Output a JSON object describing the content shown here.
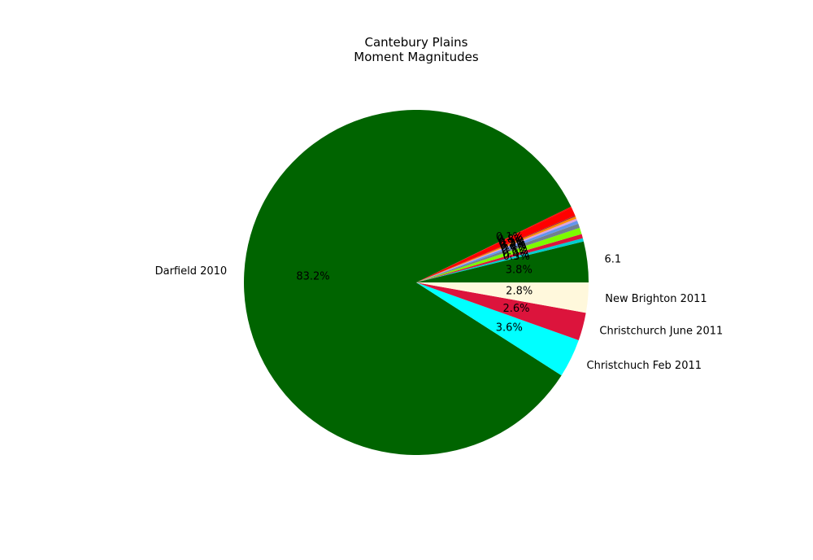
{
  "chart_data": {
    "type": "pie",
    "title_lines": [
      "Cantebury Plains",
      "Moment Magnitudes"
    ],
    "slices": [
      {
        "label": "6.1",
        "value": 3.8,
        "pct": "3.8%",
        "color": "#006400"
      },
      {
        "label": "",
        "value": 0.3,
        "pct": "0.3%",
        "color": "#00ced1"
      },
      {
        "label": "",
        "value": 0.4,
        "pct": "0.4%",
        "color": "#dc143c"
      },
      {
        "label": "",
        "value": 0.6,
        "pct": "0.6%",
        "color": "#7cfc00"
      },
      {
        "label": "",
        "value": 0.4,
        "pct": "0.4%",
        "color": "#708090"
      },
      {
        "label": "",
        "value": 0.3,
        "pct": "0.3%",
        "color": "#6495ed"
      },
      {
        "label": "",
        "value": 0.2,
        "pct": "0.2%",
        "color": "#dda0dd"
      },
      {
        "label": "",
        "value": 0.2,
        "pct": "0.2%",
        "color": "#ff8c00"
      },
      {
        "label": "",
        "value": 0.1,
        "pct": "0.1%",
        "color": "#a52a2a"
      },
      {
        "label": "",
        "value": 0.8,
        "pct": "0.8%",
        "color": "#ff0000"
      },
      {
        "label": "",
        "value": 0.1,
        "pct": "0.1%",
        "color": "#ff0000"
      },
      {
        "label": "Darfield 2010",
        "value": 83.2,
        "pct": "83.2%",
        "color": "#006400"
      },
      {
        "label": "Christchuch Feb 2011",
        "value": 3.6,
        "pct": "3.6%",
        "color": "#00ffff"
      },
      {
        "label": "Christchurch June 2011",
        "value": 2.6,
        "pct": "2.6%",
        "color": "#dc143c"
      },
      {
        "label": "New Brighton 2011",
        "value": 2.8,
        "pct": "2.8%",
        "color": "#fff8dc"
      }
    ],
    "start_angle_deg": 0,
    "direction": "counterclockwise",
    "legend": "none"
  }
}
